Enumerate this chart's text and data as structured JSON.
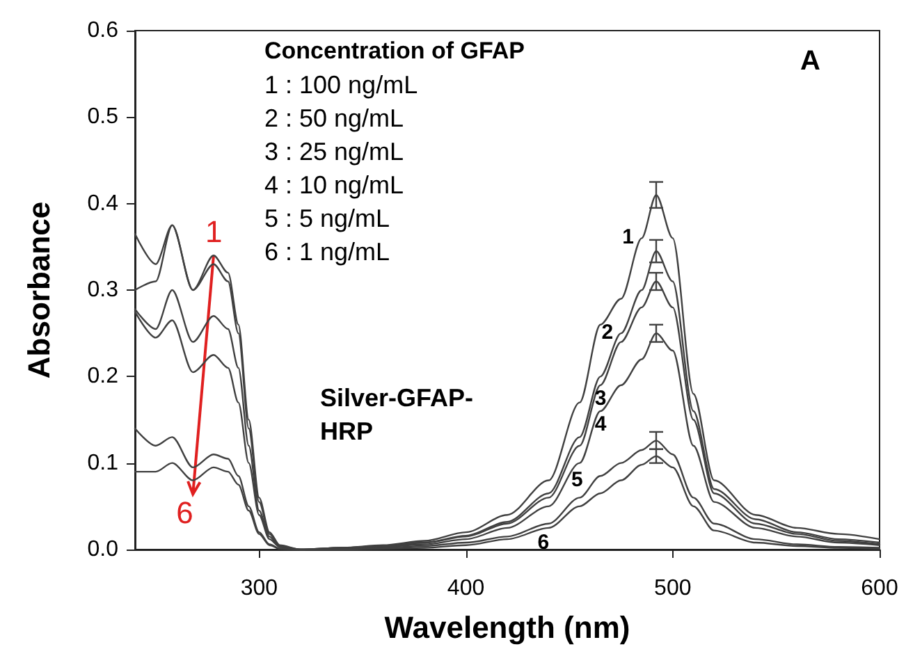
{
  "chart_data": {
    "type": "line",
    "xlabel": "Wavelength (nm)",
    "ylabel": "Absorbance",
    "x": [
      240,
      250,
      258,
      268,
      278,
      285,
      290,
      295,
      300,
      305,
      310,
      320,
      340,
      360,
      380,
      400,
      420,
      440,
      455,
      465,
      475,
      485,
      492,
      500,
      510,
      520,
      540,
      560,
      580,
      600
    ],
    "series": [
      {
        "name": "1",
        "color": "#404040",
        "values": [
          0.365,
          0.33,
          0.375,
          0.3,
          0.34,
          0.32,
          0.26,
          0.15,
          0.06,
          0.02,
          0.005,
          0,
          0.002,
          0.005,
          0.01,
          0.02,
          0.04,
          0.08,
          0.17,
          0.26,
          0.29,
          0.36,
          0.41,
          0.36,
          0.18,
          0.08,
          0.04,
          0.025,
          0.018,
          0.012
        ],
        "errors": [
          null,
          null,
          null,
          null,
          null,
          null,
          null,
          null,
          null,
          null,
          null,
          null,
          null,
          null,
          null,
          null,
          null,
          null,
          null,
          null,
          null,
          null,
          0.015,
          null,
          null,
          null,
          null,
          null,
          null,
          null
        ]
      },
      {
        "name": "2",
        "color": "#404040",
        "values": [
          0.3,
          0.31,
          0.375,
          0.3,
          0.33,
          0.31,
          0.25,
          0.14,
          0.055,
          0.018,
          0.004,
          0,
          0.002,
          0.004,
          0.008,
          0.016,
          0.032,
          0.065,
          0.13,
          0.2,
          0.25,
          0.3,
          0.345,
          0.31,
          0.16,
          0.07,
          0.035,
          0.02,
          0.012,
          0.008
        ],
        "errors": [
          null,
          null,
          null,
          null,
          null,
          null,
          null,
          null,
          null,
          null,
          null,
          null,
          null,
          null,
          null,
          null,
          null,
          null,
          null,
          null,
          null,
          null,
          0.013,
          null,
          null,
          null,
          null,
          null,
          null,
          null
        ]
      },
      {
        "name": "3",
        "color": "#404040",
        "values": [
          0.278,
          0.255,
          0.3,
          0.24,
          0.27,
          0.255,
          0.21,
          0.12,
          0.045,
          0.015,
          0.003,
          0,
          0.002,
          0.004,
          0.008,
          0.015,
          0.03,
          0.06,
          0.12,
          0.19,
          0.24,
          0.28,
          0.31,
          0.28,
          0.15,
          0.065,
          0.03,
          0.018,
          0.01,
          0.006
        ],
        "errors": [
          null,
          null,
          null,
          null,
          null,
          null,
          null,
          null,
          null,
          null,
          null,
          null,
          null,
          null,
          null,
          null,
          null,
          null,
          null,
          null,
          null,
          null,
          0.01,
          null,
          null,
          null,
          null,
          null,
          null,
          null
        ]
      },
      {
        "name": "4",
        "color": "#404040",
        "values": [
          0.275,
          0.245,
          0.265,
          0.205,
          0.225,
          0.21,
          0.17,
          0.1,
          0.04,
          0.012,
          0.003,
          0,
          0.001,
          0.003,
          0.006,
          0.012,
          0.025,
          0.05,
          0.1,
          0.16,
          0.19,
          0.22,
          0.25,
          0.23,
          0.12,
          0.055,
          0.025,
          0.015,
          0.008,
          0.005
        ],
        "errors": [
          null,
          null,
          null,
          null,
          null,
          null,
          null,
          null,
          null,
          null,
          null,
          null,
          null,
          null,
          null,
          null,
          null,
          null,
          null,
          null,
          null,
          null,
          0.01,
          null,
          null,
          null,
          null,
          null,
          null,
          null
        ]
      },
      {
        "name": "5",
        "color": "#404040",
        "values": [
          0.14,
          0.12,
          0.13,
          0.095,
          0.11,
          0.105,
          0.085,
          0.05,
          0.02,
          0.006,
          0.001,
          0,
          0,
          0.002,
          0.004,
          0.008,
          0.015,
          0.03,
          0.06,
          0.085,
          0.1,
          0.115,
          0.126,
          0.11,
          0.06,
          0.03,
          0.012,
          0.006,
          0.003,
          0.002
        ],
        "errors": [
          null,
          null,
          null,
          null,
          null,
          null,
          null,
          null,
          null,
          null,
          null,
          null,
          null,
          null,
          null,
          null,
          null,
          null,
          null,
          null,
          null,
          null,
          0.01,
          null,
          null,
          null,
          null,
          null,
          null,
          null
        ]
      },
      {
        "name": "6",
        "color": "#404040",
        "values": [
          0.09,
          0.09,
          0.1,
          0.08,
          0.095,
          0.09,
          0.075,
          0.045,
          0.018,
          0.005,
          0.001,
          0,
          0,
          0.001,
          0.002,
          0.005,
          0.012,
          0.025,
          0.05,
          0.065,
          0.08,
          0.098,
          0.108,
          0.095,
          0.05,
          0.022,
          0.008,
          0.004,
          0.002,
          0.001
        ],
        "errors": [
          null,
          null,
          null,
          null,
          null,
          null,
          null,
          null,
          null,
          null,
          null,
          null,
          null,
          null,
          null,
          null,
          null,
          null,
          null,
          null,
          null,
          null,
          0.008,
          null,
          null,
          null,
          null,
          null,
          null,
          null
        ]
      }
    ],
    "xlim": [
      240,
      600
    ],
    "xticks": [
      300,
      400,
      500,
      600
    ],
    "ylim": [
      0,
      0.6
    ],
    "yticks": [
      {
        "value": 0,
        "label": "0.0"
      },
      {
        "value": 0.1,
        "label": "0.1"
      },
      {
        "value": 0.2,
        "label": "0.2"
      },
      {
        "value": 0.3,
        "label": "0.3"
      },
      {
        "value": 0.4,
        "label": "0.4"
      },
      {
        "value": 0.5,
        "label": "0.5"
      },
      {
        "value": 0.6,
        "label": "0.6"
      }
    ],
    "annotations": [
      "Concentration of GFAP",
      "1 : 100 ng/mL",
      "2 : 50 ng/mL",
      "3 : 25 ng/mL",
      "4 : 10 ng/mL",
      "5 : 5 ng/mL",
      "6 : 1 ng/mL",
      "Silver-GFAP-HRP",
      "A",
      {
        "text": "1",
        "x": 278,
        "y": 0.34
      },
      {
        "text": "6",
        "x": 268,
        "y": 0.08
      }
    ],
    "grid": false,
    "legend": false,
    "marker": "none",
    "line_style": "solid"
  }
}
